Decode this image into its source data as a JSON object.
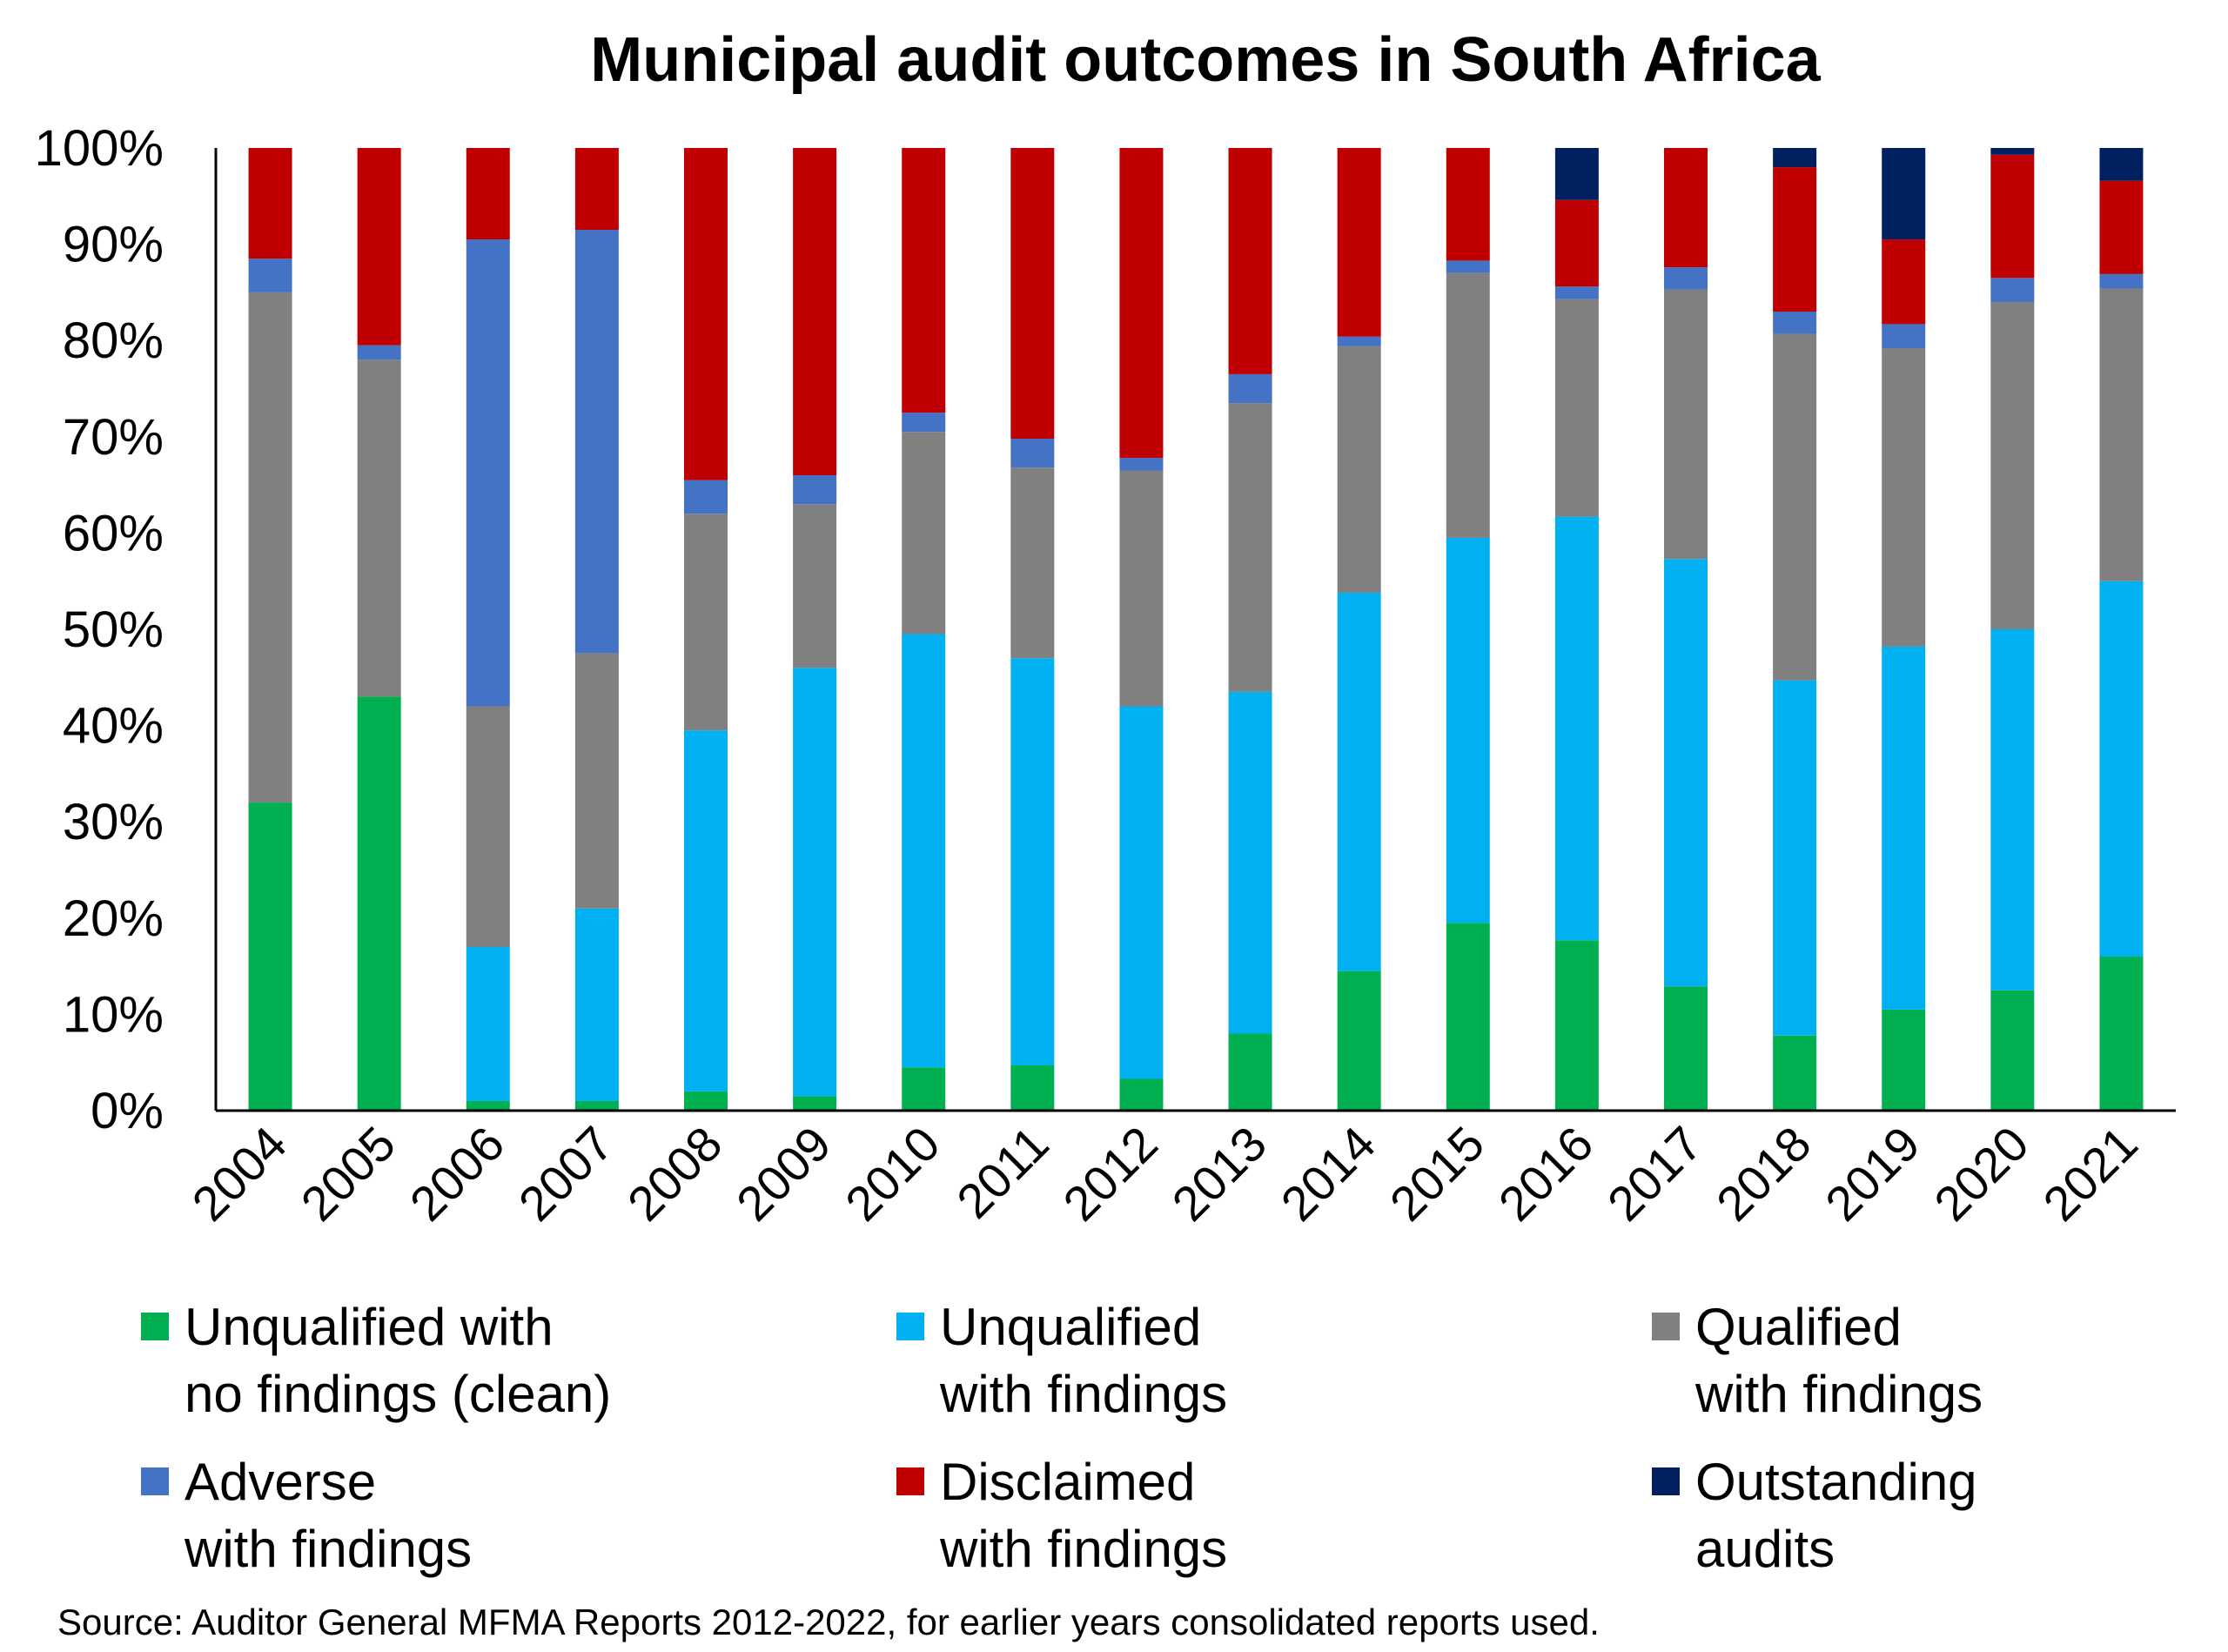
{
  "chart_data": {
    "type": "bar",
    "stacked": true,
    "title": "Municipal audit outcomes in South Africa",
    "categories": [
      "2004",
      "2005",
      "2006",
      "2007",
      "2008",
      "2009",
      "2010",
      "2011",
      "2012",
      "2013",
      "2014",
      "2015",
      "2016",
      "2017",
      "2018",
      "2019",
      "2020",
      "2021"
    ],
    "ylim": [
      0,
      100
    ],
    "yticks": [
      "0%",
      "10%",
      "20%",
      "30%",
      "40%",
      "50%",
      "60%",
      "70%",
      "80%",
      "90%",
      "100%"
    ],
    "series": [
      {
        "name": "Unqualified with\nno findings (clean)",
        "color": "#00b050",
        "values": [
          32,
          43,
          1,
          1,
          2,
          1.5,
          4.5,
          4.7,
          3.3,
          8,
          14.5,
          19.5,
          17.7,
          12.9,
          7.8,
          10.5,
          12.5,
          16
        ]
      },
      {
        "name": "Unqualified\nwith findings",
        "color": "#00b0f0",
        "values": [
          0,
          0,
          16,
          20,
          37.5,
          44.5,
          45,
          42.3,
          38.7,
          35.5,
          39.3,
          40,
          44,
          44.4,
          36.9,
          37.7,
          37.5,
          39
        ]
      },
      {
        "name": "Qualified\nwith findings",
        "color": "#808080",
        "values": [
          53,
          35,
          25,
          26.5,
          22.5,
          17,
          21,
          19.8,
          24.5,
          30,
          25.6,
          27.5,
          22.6,
          28,
          36,
          31,
          34,
          30.4
        ]
      },
      {
        "name": "Adverse\nwith findings",
        "color": "#4472c4",
        "values": [
          3.5,
          1.5,
          48.5,
          44,
          3.5,
          3,
          2,
          3,
          1.3,
          3,
          1,
          1.3,
          1.3,
          2.3,
          2.3,
          2.5,
          2.5,
          1.5
        ]
      },
      {
        "name": "Disclaimed\nwith findings",
        "color": "#c00000",
        "values": [
          11.5,
          20.5,
          9.5,
          8.5,
          34.5,
          34,
          27.5,
          30.2,
          32.2,
          23.5,
          19.6,
          11.7,
          9,
          12.4,
          15,
          8.8,
          12.8,
          9.7
        ]
      },
      {
        "name": "Outstanding\naudits",
        "color": "#002060",
        "values": [
          0,
          0,
          0,
          0,
          0,
          0,
          0,
          0,
          0,
          0,
          0,
          0,
          5.4,
          0,
          2,
          9.5,
          0.7,
          3.4
        ]
      }
    ]
  },
  "source": "Source: Auditor General MFMA Reports  2012-2022, for earlier years consolidated reports used."
}
